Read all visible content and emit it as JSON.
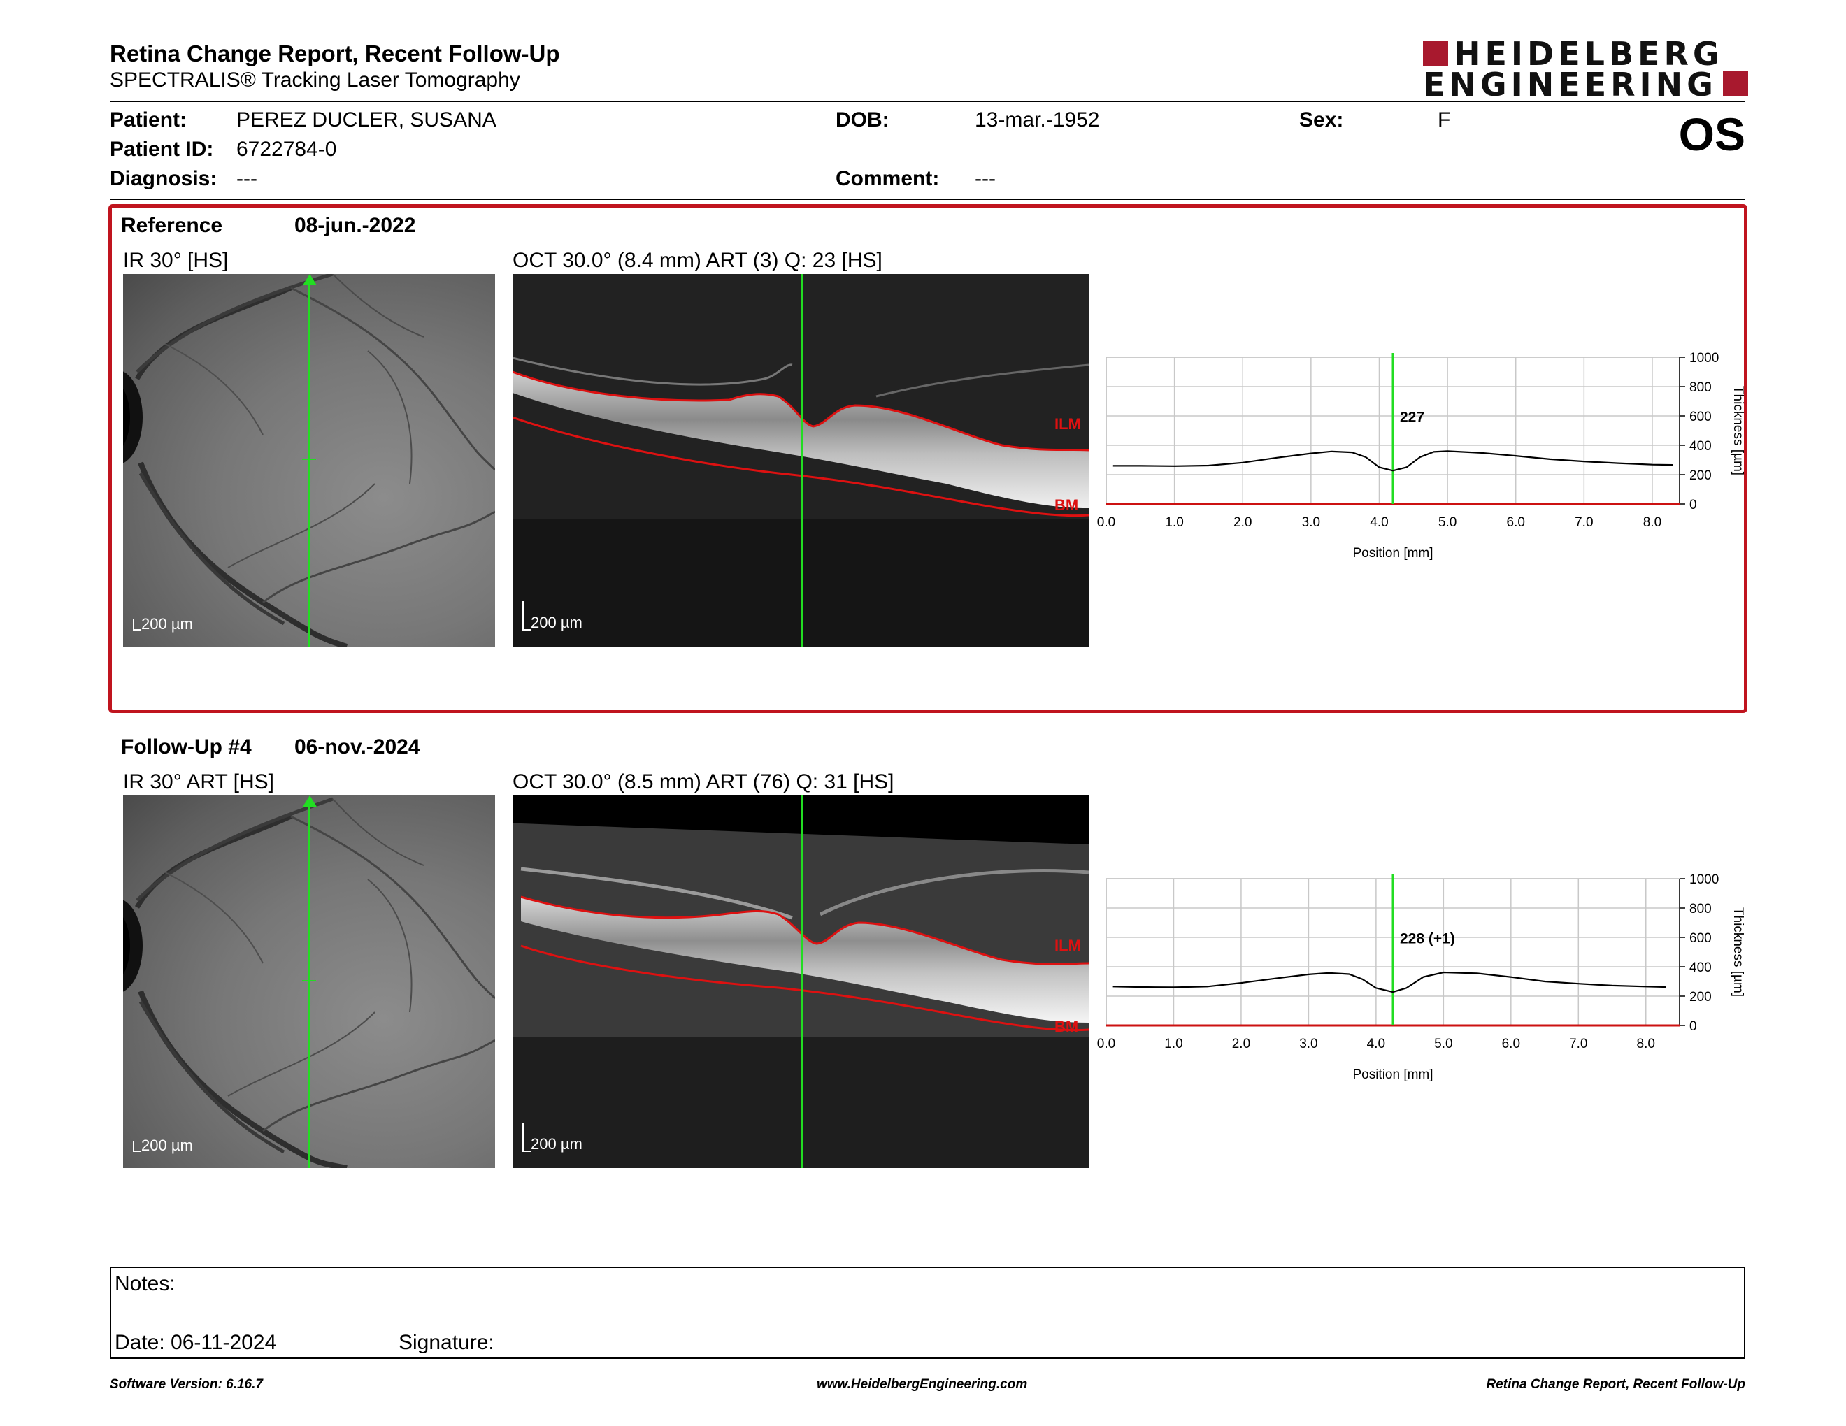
{
  "header": {
    "title": "Retina Change Report, Recent Follow-Up",
    "subtitle": "SPECTRALIS® Tracking Laser Tomography",
    "logo_line1": "HEIDELBERG",
    "logo_line2": "ENGINEERING",
    "eye": "OS"
  },
  "patient": {
    "name_label": "Patient:",
    "name": "PEREZ DUCLER, SUSANA",
    "id_label": "Patient ID:",
    "id": "6722784-0",
    "diagnosis_label": "Diagnosis:",
    "diagnosis": "---",
    "dob_label": "DOB:",
    "dob": "13-mar.-1952",
    "comment_label": "Comment:",
    "comment": "---",
    "sex_label": "Sex:",
    "sex": "F"
  },
  "reference": {
    "label": "Reference",
    "date": "08-jun.-2022",
    "ir_label": "IR 30° [HS]",
    "oct_label": "OCT 30.0° (8.4 mm) ART (3) Q: 23 [HS]",
    "scale": "200 µm"
  },
  "followup": {
    "label": "Follow-Up #4",
    "date": "06-nov.-2024",
    "ir_label": "IR 30° ART [HS]",
    "oct_label": "OCT 30.0° (8.5 mm) ART (76) Q: 31 [HS]",
    "scale": "200 µm"
  },
  "layers": {
    "ilm": "ILM",
    "bm": "BM"
  },
  "colors": {
    "frame": "#c0141e",
    "cursor": "#22dd22",
    "layer": "#dd1111",
    "logo": "#a8192e"
  },
  "icons": {
    "arrow": "arrow-up-icon"
  },
  "chart_data": [
    {
      "type": "line",
      "xlabel": "Position [mm]",
      "ylabel": "Thickness [µm]",
      "xlim": [
        0,
        8.4
      ],
      "ylim": [
        0,
        1000
      ],
      "x_ticks": [
        "0.0",
        "1.0",
        "2.0",
        "3.0",
        "4.0",
        "5.0",
        "6.0",
        "7.0",
        "8.0"
      ],
      "y_ticks": [
        "0",
        "200",
        "400",
        "600",
        "800",
        "1000"
      ],
      "cursor_x": 4.2,
      "cursor_label": "227",
      "grid": true,
      "series": [
        {
          "x": [
            0.1,
            0.5,
            1.0,
            1.5,
            2.0,
            2.5,
            3.0,
            3.3,
            3.6,
            3.8,
            4.0,
            4.2,
            4.4,
            4.6,
            4.8,
            5.0,
            5.5,
            6.0,
            6.5,
            7.0,
            7.5,
            8.0,
            8.3
          ],
          "y": [
            260,
            260,
            258,
            262,
            282,
            315,
            345,
            358,
            352,
            320,
            250,
            227,
            250,
            320,
            355,
            360,
            348,
            328,
            305,
            290,
            278,
            268,
            266
          ]
        }
      ]
    },
    {
      "type": "line",
      "xlabel": "Position [mm]",
      "ylabel": "Thickness [µm]",
      "xlim": [
        0,
        8.5
      ],
      "ylim": [
        0,
        1000
      ],
      "x_ticks": [
        "0.0",
        "1.0",
        "2.0",
        "3.0",
        "4.0",
        "5.0",
        "6.0",
        "7.0",
        "8.0"
      ],
      "y_ticks": [
        "0",
        "200",
        "400",
        "600",
        "800",
        "1000"
      ],
      "cursor_x": 4.25,
      "cursor_label": "228 (+1)",
      "grid": true,
      "series": [
        {
          "x": [
            0.1,
            0.5,
            1.0,
            1.5,
            2.0,
            2.5,
            3.0,
            3.3,
            3.6,
            3.8,
            4.0,
            4.25,
            4.45,
            4.7,
            5.0,
            5.5,
            6.0,
            6.5,
            7.0,
            7.5,
            8.0,
            8.3
          ],
          "y": [
            265,
            262,
            260,
            265,
            290,
            320,
            348,
            358,
            350,
            315,
            255,
            228,
            255,
            330,
            362,
            355,
            330,
            300,
            285,
            272,
            265,
            262
          ]
        }
      ]
    }
  ],
  "notes": {
    "label": "Notes:",
    "date_label": "Date: 06-11-2024",
    "signature_label": "Signature:"
  },
  "footer": {
    "software": "Software Version: 6.16.7",
    "website": "www.HeidelbergEngineering.com",
    "report": "Retina Change Report, Recent Follow-Up"
  }
}
